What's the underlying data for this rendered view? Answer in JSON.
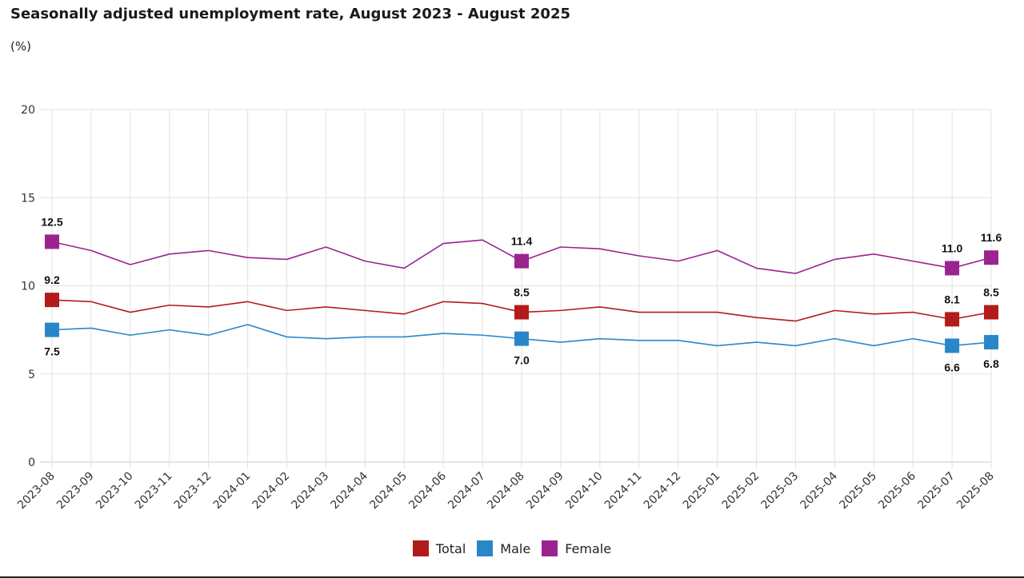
{
  "header": {
    "title": "Seasonally adjusted unemployment rate, August 2023 - August 2025",
    "subtitle": "(%)"
  },
  "legend": {
    "items": [
      {
        "label": "Total",
        "color": "#b31b1b"
      },
      {
        "label": "Male",
        "color": "#2a86c9"
      },
      {
        "label": "Female",
        "color": "#9b2390"
      }
    ]
  },
  "chart_data": {
    "type": "line",
    "title": "Seasonally adjusted unemployment rate, August 2023 - August 2025",
    "subtitle": "(%)",
    "xlabel": "",
    "ylabel": "",
    "ylim": [
      0,
      20
    ],
    "yticks": [
      0,
      5,
      10,
      15,
      20
    ],
    "grid": true,
    "legend_position": "bottom-center",
    "categories": [
      "2023-08",
      "2023-09",
      "2023-10",
      "2023-11",
      "2023-12",
      "2024-01",
      "2024-02",
      "2024-03",
      "2024-04",
      "2024-05",
      "2024-06",
      "2024-07",
      "2024-08",
      "2024-09",
      "2024-10",
      "2024-11",
      "2024-12",
      "2025-01",
      "2025-02",
      "2025-03",
      "2025-04",
      "2025-05",
      "2025-06",
      "2025-07",
      "2025-08"
    ],
    "series": [
      {
        "name": "Total",
        "color": "#b31b1b",
        "values": [
          9.2,
          9.1,
          8.5,
          8.9,
          8.8,
          9.1,
          8.6,
          8.8,
          8.6,
          8.4,
          9.1,
          9.0,
          8.5,
          8.6,
          8.8,
          8.5,
          8.5,
          8.5,
          8.2,
          8.0,
          8.6,
          8.4,
          8.5,
          8.1,
          8.5
        ],
        "labeled": [
          {
            "index": 0,
            "text": "9.2",
            "pos": "above"
          },
          {
            "index": 12,
            "text": "8.5",
            "pos": "above"
          },
          {
            "index": 23,
            "text": "8.1",
            "pos": "above"
          },
          {
            "index": 24,
            "text": "8.5",
            "pos": "above"
          }
        ]
      },
      {
        "name": "Male",
        "color": "#2a86c9",
        "values": [
          7.5,
          7.6,
          7.2,
          7.5,
          7.2,
          7.8,
          7.1,
          7.0,
          7.1,
          7.1,
          7.3,
          7.2,
          7.0,
          6.8,
          7.0,
          6.9,
          6.9,
          6.6,
          6.8,
          6.6,
          7.0,
          6.6,
          7.0,
          6.6,
          6.8
        ],
        "labeled": [
          {
            "index": 0,
            "text": "7.5",
            "pos": "below"
          },
          {
            "index": 12,
            "text": "7.0",
            "pos": "below"
          },
          {
            "index": 23,
            "text": "6.6",
            "pos": "below"
          },
          {
            "index": 24,
            "text": "6.8",
            "pos": "below"
          }
        ]
      },
      {
        "name": "Female",
        "color": "#9b2390",
        "values": [
          12.5,
          12.0,
          11.2,
          11.8,
          12.0,
          11.6,
          11.5,
          12.2,
          11.4,
          11.0,
          12.4,
          12.6,
          11.4,
          12.2,
          12.1,
          11.7,
          11.4,
          12.0,
          11.0,
          10.7,
          11.5,
          11.8,
          11.4,
          11.0,
          11.6
        ],
        "labeled": [
          {
            "index": 0,
            "text": "12.5",
            "pos": "above"
          },
          {
            "index": 12,
            "text": "11.4",
            "pos": "above"
          },
          {
            "index": 23,
            "text": "11.0",
            "pos": "above"
          },
          {
            "index": 24,
            "text": "11.6",
            "pos": "above"
          }
        ]
      }
    ]
  }
}
